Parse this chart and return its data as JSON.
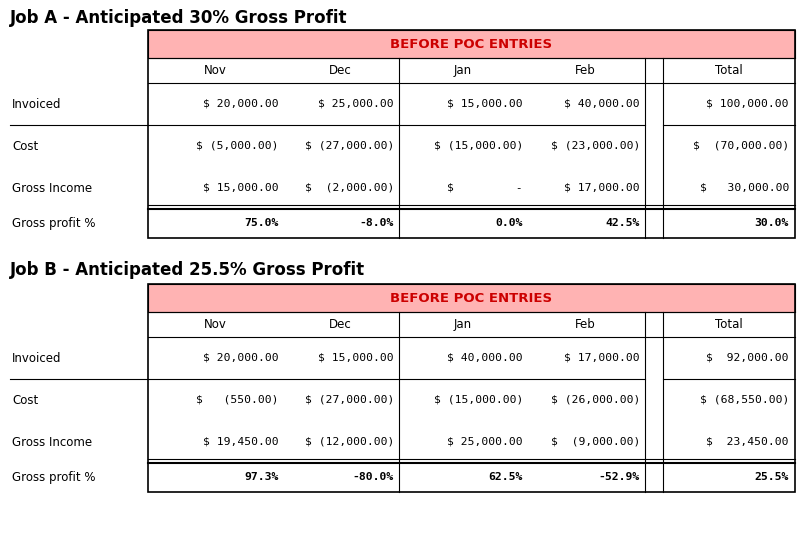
{
  "job_a_title": "Job A - Anticipated 30% Gross Profit",
  "job_b_title": "Job B - Anticipated 25.5% Gross Profit",
  "before_poc_label": "BEFORE POC ENTRIES",
  "before_poc_bg": "#FFB3B3",
  "before_poc_text_color": "#CC0000",
  "bg_color": "#FFFFFF",
  "border_color": "#000000",
  "job_a": {
    "invoiced": [
      "$ 20,000.00",
      "$ 25,000.00",
      "$ 15,000.00",
      "$ 40,000.00",
      "$ 100,000.00"
    ],
    "cost": [
      "$ (5,000.00)",
      "$ (27,000.00)",
      "$ (15,000.00)",
      "$ (23,000.00)",
      "$  (70,000.00)"
    ],
    "gross_income": [
      "$ 15,000.00",
      "$  (2,000.00)",
      "$         -",
      "$ 17,000.00",
      "$   30,000.00"
    ],
    "gross_pct": [
      "75.0%",
      "-8.0%",
      "0.0%",
      "42.5%",
      "30.0%"
    ]
  },
  "job_b": {
    "invoiced": [
      "$ 20,000.00",
      "$ 15,000.00",
      "$ 40,000.00",
      "$ 17,000.00",
      "$  92,000.00"
    ],
    "cost": [
      "$   (550.00)",
      "$ (27,000.00)",
      "$ (15,000.00)",
      "$ (26,000.00)",
      "$ (68,550.00)"
    ],
    "gross_income": [
      "$ 19,450.00",
      "$ (12,000.00)",
      "$ 25,000.00",
      "$  (9,000.00)",
      "$  23,450.00"
    ],
    "gross_pct": [
      "97.3%",
      "-80.0%",
      "62.5%",
      "-52.9%",
      "25.5%"
    ]
  },
  "col_headers": [
    "Nov",
    "Dec",
    "Jan",
    "Feb",
    "Total"
  ],
  "row_labels": [
    "Invoiced",
    "Cost",
    "Gross Income",
    "Gross profit %"
  ]
}
